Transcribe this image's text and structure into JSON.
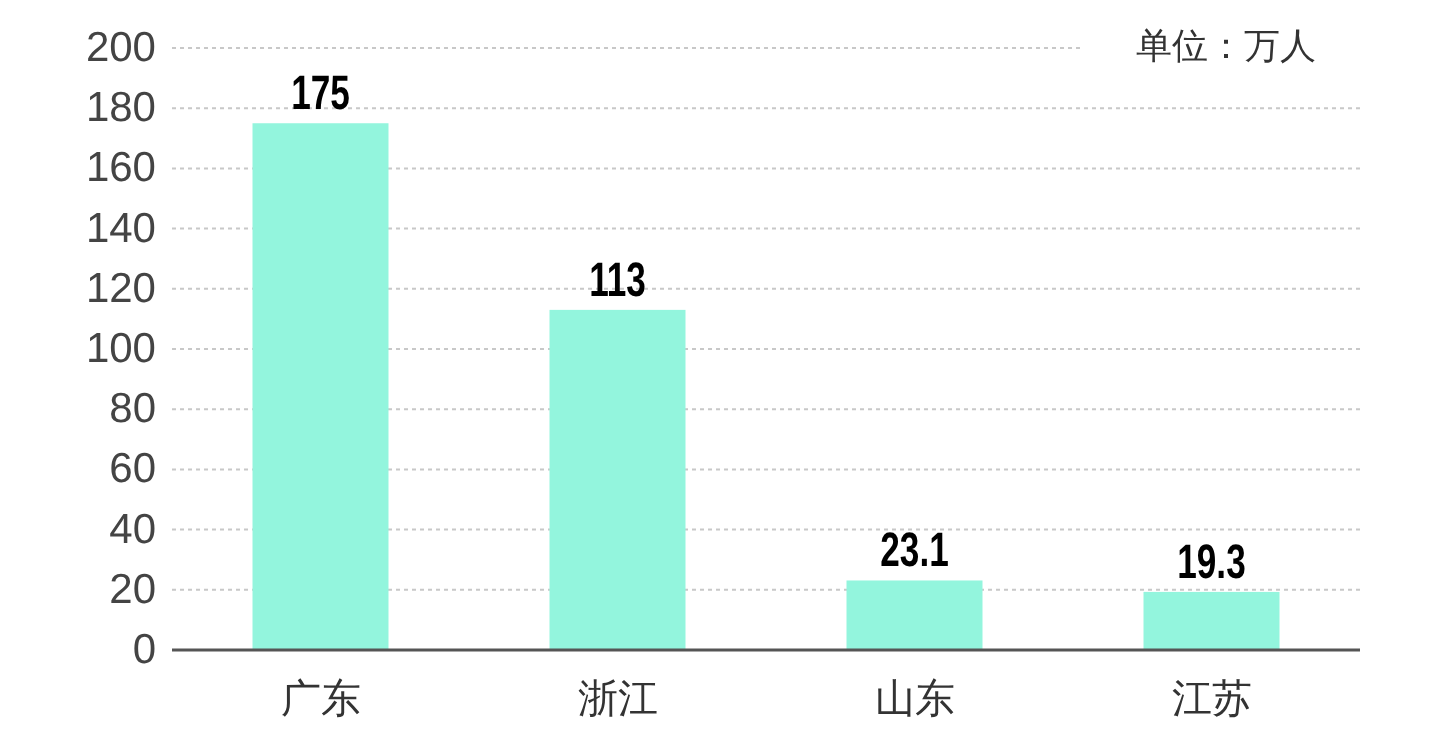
{
  "chart_data": {
    "type": "bar",
    "categories": [
      "广东",
      "浙江",
      "山东",
      "江苏"
    ],
    "values": [
      175,
      113,
      23.1,
      19.3
    ],
    "color": "#93f5dd",
    "ylim": [
      0,
      200
    ],
    "yticks": [
      0,
      20,
      40,
      60,
      80,
      100,
      120,
      140,
      160,
      180,
      200
    ],
    "grid": "y",
    "data_labels": true,
    "annotations": [
      "单位：万人"
    ]
  }
}
